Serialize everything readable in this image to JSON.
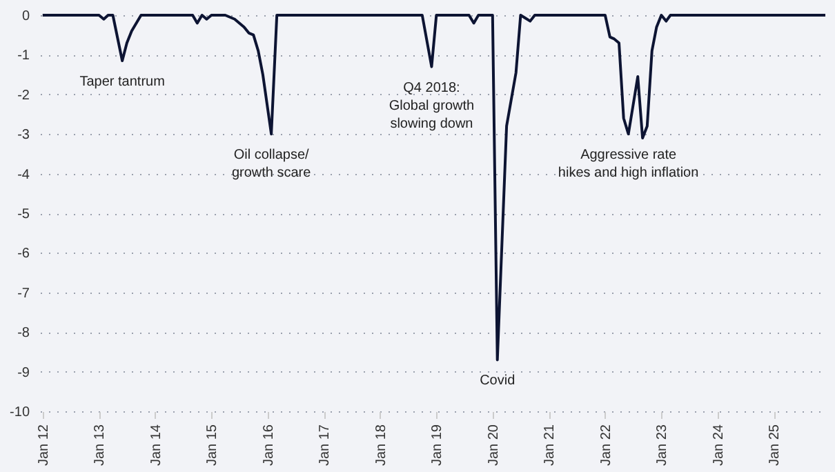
{
  "chart_data": {
    "type": "line",
    "x": [
      "2012-01",
      "2013-01",
      "2013-02",
      "2013-03",
      "2013-04",
      "2013-06",
      "2013-07",
      "2013-08",
      "2013-10",
      "2014-09",
      "2014-10",
      "2014-11",
      "2014-12",
      "2015-01",
      "2015-04",
      "2015-06",
      "2015-08",
      "2015-09",
      "2015-10",
      "2015-11",
      "2015-12",
      "2016-01-25",
      "2016-03",
      "2018-10",
      "2018-12",
      "2019-01",
      "2019-08",
      "2019-09",
      "2019-10",
      "2020-01",
      "2020-02",
      "2020-04",
      "2020-06",
      "2020-07",
      "2020-09",
      "2020-10",
      "2022-01",
      "2022-02",
      "2022-03",
      "2022-04",
      "2022-05",
      "2022-06",
      "2022-08",
      "2022-09",
      "2022-10",
      "2022-11",
      "2022-12",
      "2023-01",
      "2023-02",
      "2023-03",
      "2025-12"
    ],
    "series": [
      {
        "color": "#0d1433",
        "values": [
          0,
          0,
          -0.1,
          0,
          0,
          -1.15,
          -0.7,
          -0.4,
          0,
          0,
          -0.2,
          0,
          -0.1,
          0,
          0,
          -0.1,
          -0.3,
          -0.45,
          -0.5,
          -0.9,
          -1.5,
          -3.0,
          0,
          0,
          -1.3,
          0,
          0,
          -0.2,
          0,
          0,
          -8.7,
          -2.8,
          -1.45,
          0,
          -0.15,
          0,
          0,
          -0.55,
          -0.6,
          -0.7,
          -2.6,
          -3.0,
          -1.55,
          -3.1,
          -2.8,
          -0.9,
          -0.3,
          0,
          -0.15,
          0,
          0
        ]
      }
    ],
    "xlim": [
      "2011-12-15",
      "2025-12"
    ],
    "xticks": [
      {
        "value": "2012-01",
        "label": "Jan 12"
      },
      {
        "value": "2013-01",
        "label": "Jan 13"
      },
      {
        "value": "2014-01",
        "label": "Jan 14"
      },
      {
        "value": "2015-01",
        "label": "Jan 15"
      },
      {
        "value": "2016-01",
        "label": "Jan 16"
      },
      {
        "value": "2017-01",
        "label": "Jan 17"
      },
      {
        "value": "2018-01",
        "label": "Jan 18"
      },
      {
        "value": "2019-01",
        "label": "Jan 19"
      },
      {
        "value": "2020-01",
        "label": "Jan 20"
      },
      {
        "value": "2021-01",
        "label": "Jan 21"
      },
      {
        "value": "2022-01",
        "label": "Jan 22"
      },
      {
        "value": "2023-01",
        "label": "Jan 23"
      },
      {
        "value": "2024-01",
        "label": "Jan 24"
      },
      {
        "value": "2025-01",
        "label": "Jan 25"
      }
    ],
    "ylim": [
      -10,
      0
    ],
    "yticks": [
      0,
      -1,
      -2,
      -3,
      -4,
      -5,
      -6,
      -7,
      -8,
      -9,
      -10
    ],
    "grid": "y",
    "annotations": [
      {
        "text": "Taper tantrum",
        "x": "2013-06",
        "y": -1.15
      },
      {
        "text": "Oil collapse/\ngrowth scare",
        "x": "2016-01-25",
        "y": -3.0
      },
      {
        "text": "Q4 2018:\nGlobal growth\nslowing down",
        "x": "2018-12",
        "y": -1.3
      },
      {
        "text": "Covid",
        "x": "2020-02",
        "y": -8.7
      },
      {
        "text": "Aggressive rate\nhikes and high inflation",
        "x": "2022-06",
        "y": -3.0
      }
    ]
  }
}
